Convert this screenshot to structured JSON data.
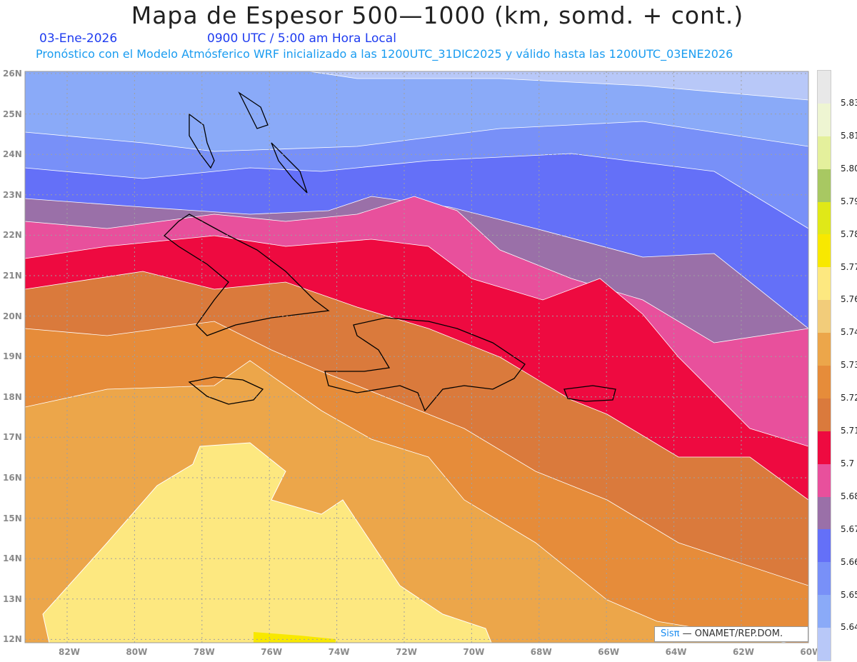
{
  "header": {
    "title": "Mapa de Espesor 500—1000 (km, somd. + cont.)",
    "date": "03-Ene-2026",
    "time": "0900 UTC / 5:00 am Hora Local",
    "forecast": "Pronóstico con el Modelo Atmósferico WRF inicializado a las 1200UTC_31DIC2025 y válido hasta las  1200UTC_03ENE2026"
  },
  "axes": {
    "lat_labels": [
      "26N",
      "25N",
      "24N",
      "23N",
      "22N",
      "21N",
      "20N",
      "19N",
      "18N",
      "17N",
      "16N",
      "15N",
      "14N",
      "13N",
      "12N"
    ],
    "lon_labels": [
      "82W",
      "80W",
      "78W",
      "76W",
      "74W",
      "72W",
      "70W",
      "68W",
      "66W",
      "64W",
      "62W",
      "60W"
    ]
  },
  "colorbar": {
    "labels": [
      "5.831",
      "5.819",
      "5.807",
      "5.795",
      "5.783",
      "5.772",
      "5.76",
      "5.748",
      "5.736",
      "5.724",
      "5.712",
      "5.7",
      "5.688",
      "5.676",
      "5.664",
      "5.652",
      "5.64"
    ],
    "colors": [
      "#e8e8e8",
      "#eef5d2",
      "#e4f09c",
      "#a8c862",
      "#e0e818",
      "#f8e800",
      "#fde880",
      "#f2cc7a",
      "#eca64a",
      "#e68c3a",
      "#da7a3c",
      "#ee0a40",
      "#e8509c",
      "#9a70a8",
      "#6470f8",
      "#7890f8",
      "#8aaaf8",
      "#b8c8f8"
    ]
  },
  "credit": {
    "brand": "Sisπ",
    "text": "— ONAMET/REP.DOM."
  }
}
